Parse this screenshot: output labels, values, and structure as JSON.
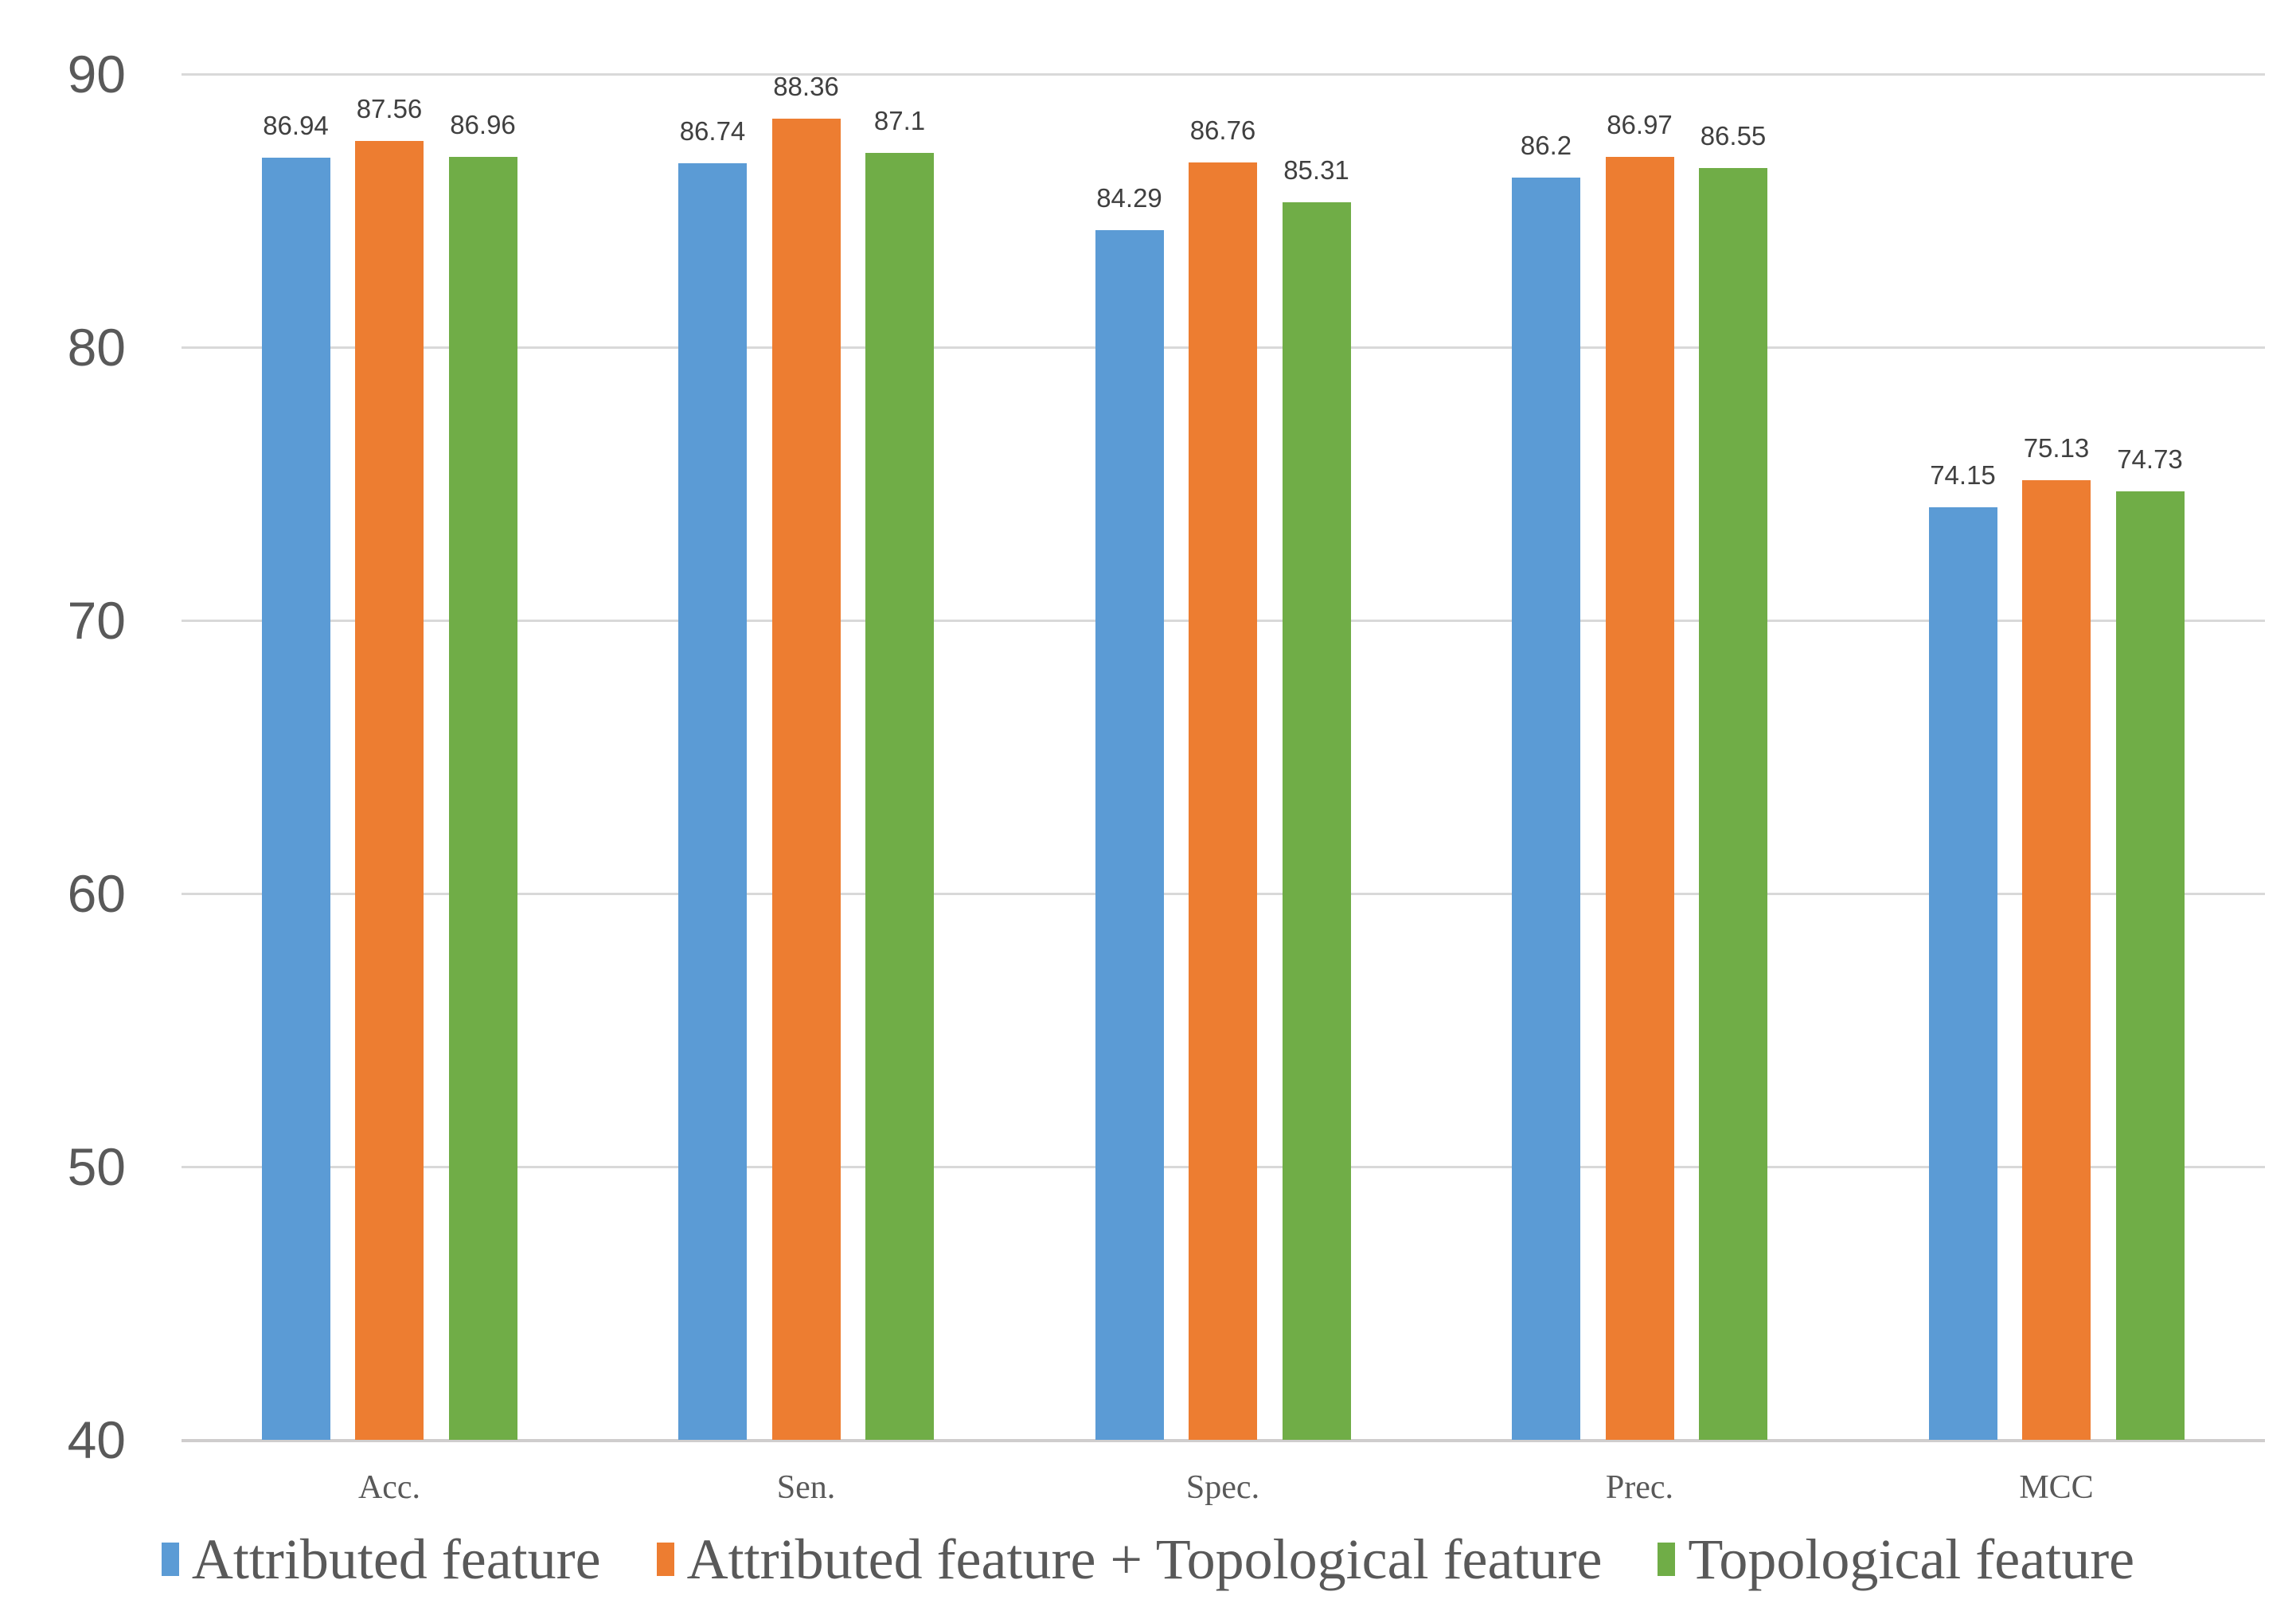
{
  "chart_data": {
    "type": "bar",
    "title": "",
    "xlabel": "",
    "ylabel": "",
    "categories": [
      "Acc.",
      "Sen.",
      "Spec.",
      "Prec.",
      "MCC"
    ],
    "series": [
      {
        "name": "Attributed feature",
        "color": "#5B9BD5",
        "values": [
          86.94,
          86.74,
          84.29,
          86.2,
          74.15
        ]
      },
      {
        "name": "Attributed feature + Topological feature",
        "color": "#ED7D31",
        "values": [
          87.56,
          88.36,
          86.76,
          86.97,
          75.13
        ]
      },
      {
        "name": "Topological feature",
        "color": "#70AD47",
        "values": [
          86.96,
          87.1,
          85.31,
          86.55,
          74.73
        ]
      }
    ],
    "ylim": [
      40,
      90
    ],
    "y_ticks": [
      90,
      80,
      70,
      60,
      50,
      40
    ],
    "grid": true,
    "legend_position": "bottom",
    "data_labels_shown": true,
    "gridline_color": "#D9D9D9",
    "axis_line_color": "#CFCDCD",
    "tick_label_color": "#595959",
    "data_label_color": "#404040"
  }
}
